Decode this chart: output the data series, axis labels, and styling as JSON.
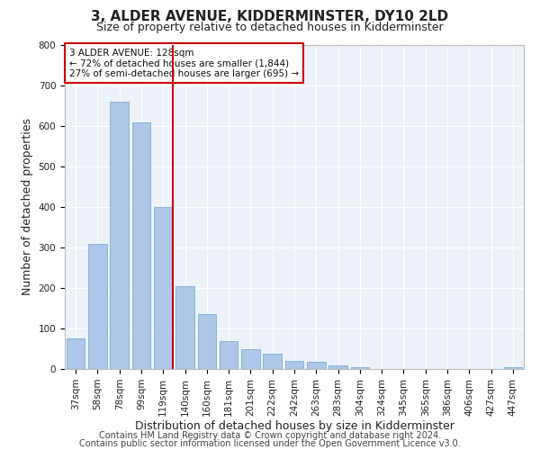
{
  "title": "3, ALDER AVENUE, KIDDERMINSTER, DY10 2LD",
  "subtitle": "Size of property relative to detached houses in Kidderminster",
  "xlabel": "Distribution of detached houses by size in Kidderminster",
  "ylabel": "Number of detached properties",
  "categories": [
    "37sqm",
    "58sqm",
    "78sqm",
    "99sqm",
    "119sqm",
    "140sqm",
    "160sqm",
    "181sqm",
    "201sqm",
    "222sqm",
    "242sqm",
    "263sqm",
    "283sqm",
    "304sqm",
    "324sqm",
    "345sqm",
    "365sqm",
    "386sqm",
    "406sqm",
    "427sqm",
    "447sqm"
  ],
  "values": [
    75,
    310,
    660,
    610,
    400,
    205,
    135,
    70,
    48,
    37,
    20,
    17,
    10,
    4,
    0,
    0,
    0,
    0,
    0,
    0,
    5
  ],
  "bar_color": "#aec6e8",
  "bar_edge_color": "#7aafd4",
  "vline_x_index": 4,
  "vline_color": "#cc0000",
  "annotation_text": "3 ALDER AVENUE: 128sqm\n← 72% of detached houses are smaller (1,844)\n27% of semi-detached houses are larger (695) →",
  "annotation_box_color": "#ffffff",
  "annotation_box_edge": "#cc0000",
  "ylim": [
    0,
    800
  ],
  "yticks": [
    0,
    100,
    200,
    300,
    400,
    500,
    600,
    700,
    800
  ],
  "background_color": "#edf2f9",
  "footer1": "Contains HM Land Registry data © Crown copyright and database right 2024.",
  "footer2": "Contains public sector information licensed under the Open Government Licence v3.0.",
  "title_fontsize": 11,
  "subtitle_fontsize": 9,
  "tick_fontsize": 7.5,
  "label_fontsize": 9,
  "footer_fontsize": 7
}
